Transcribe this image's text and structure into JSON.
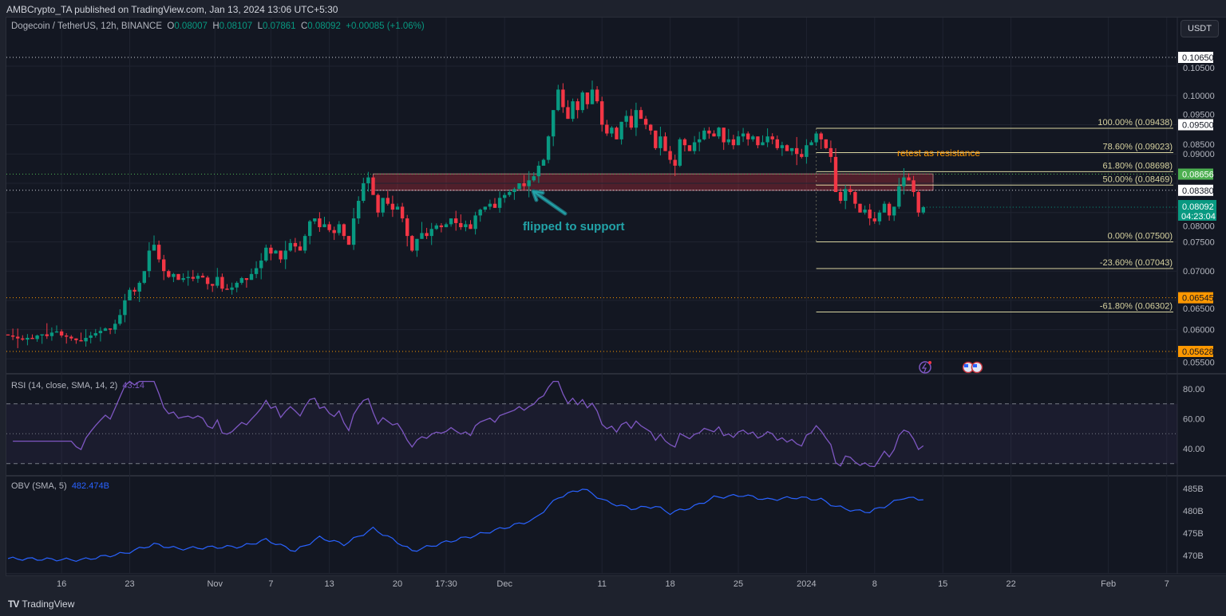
{
  "publisher_line": "AMBCrypto_TA published on TradingView.com, Jan 13, 2024 13:06 UTC+5:30",
  "symbol": {
    "name": "Dogecoin / TetherUS, 12h, BINANCE",
    "o_label": "O",
    "o": "0.08007",
    "h_label": "H",
    "h": "0.08107",
    "l_label": "L",
    "l": "0.07861",
    "c_label": "C",
    "c": "0.08092",
    "change": "+0.00085 (+1.06%)"
  },
  "currency_button": "USDT",
  "footer_brand": "TradingView",
  "colors": {
    "up": "#089981",
    "down": "#f23645",
    "fib": "#d8d3a0",
    "rsi": "#7e57c2",
    "obv": "#2962ff",
    "orange": "#ff9800",
    "green_tag": "#4caf50",
    "zone": "#f23645"
  },
  "chart_data": {
    "type": "candlestick",
    "title": "Dogecoin / TetherUS, 12h, BINANCE",
    "ylim": [
      0.0545,
      0.1095
    ],
    "price_ticks": [
      "0.10500",
      "0.10000",
      "0.09500",
      "0.09000",
      "0.08500",
      "0.08000",
      "0.07500",
      "0.07000",
      "0.06500",
      "0.06000",
      "0.05500"
    ],
    "time_ticks": [
      {
        "label": "16",
        "candle": 11
      },
      {
        "label": "23",
        "candle": 25
      },
      {
        "label": "Nov",
        "candle": 42.5
      },
      {
        "label": "7",
        "candle": 54
      },
      {
        "label": "13",
        "candle": 66
      },
      {
        "label": "20",
        "candle": 80
      },
      {
        "label": "17:30",
        "candle": 90
      },
      {
        "label": "Dec",
        "candle": 102
      },
      {
        "label": "11",
        "candle": 122
      },
      {
        "label": "18",
        "candle": 136
      },
      {
        "label": "25",
        "candle": 150
      },
      {
        "label": "2024",
        "candle": 164
      },
      {
        "label": "8",
        "candle": 178
      },
      {
        "label": "15",
        "candle": 192
      },
      {
        "label": "22",
        "candle": 206
      },
      {
        "label": "Feb",
        "candle": 226
      },
      {
        "label": "7",
        "candle": 238
      }
    ],
    "closes": [
      0.059,
      0.0588,
      0.0585,
      0.0583,
      0.0586,
      0.0584,
      0.059,
      0.0592,
      0.0589,
      0.0595,
      0.0597,
      0.059,
      0.0588,
      0.0585,
      0.0582,
      0.058,
      0.0586,
      0.059,
      0.0594,
      0.0598,
      0.0602,
      0.06,
      0.061,
      0.0625,
      0.065,
      0.0668,
      0.0665,
      0.068,
      0.07,
      0.0735,
      0.0745,
      0.072,
      0.07,
      0.069,
      0.0695,
      0.0685,
      0.0688,
      0.069,
      0.0687,
      0.0692,
      0.0689,
      0.0678,
      0.0675,
      0.069,
      0.067,
      0.0668,
      0.0672,
      0.068,
      0.0688,
      0.0685,
      0.0695,
      0.0705,
      0.0718,
      0.074,
      0.073,
      0.0735,
      0.072,
      0.0735,
      0.0748,
      0.0742,
      0.0735,
      0.076,
      0.0785,
      0.079,
      0.0775,
      0.078,
      0.077,
      0.0765,
      0.078,
      0.076,
      0.0745,
      0.079,
      0.082,
      0.085,
      0.086,
      0.083,
      0.08,
      0.0825,
      0.0815,
      0.0805,
      0.081,
      0.079,
      0.076,
      0.0735,
      0.0755,
      0.0765,
      0.076,
      0.0772,
      0.0778,
      0.0775,
      0.078,
      0.079,
      0.0782,
      0.0775,
      0.078,
      0.0772,
      0.0795,
      0.0805,
      0.081,
      0.0815,
      0.0808,
      0.0825,
      0.083,
      0.0835,
      0.084,
      0.085,
      0.0845,
      0.0855,
      0.0862,
      0.088,
      0.089,
      0.093,
      0.0975,
      0.101,
      0.098,
      0.096,
      0.099,
      0.0975,
      0.1005,
      0.0985,
      0.101,
      0.099,
      0.095,
      0.0935,
      0.0945,
      0.0925,
      0.0955,
      0.0965,
      0.0945,
      0.0975,
      0.096,
      0.095,
      0.094,
      0.091,
      0.093,
      0.0905,
      0.089,
      0.088,
      0.0925,
      0.0915,
      0.0905,
      0.092,
      0.0925,
      0.094,
      0.0935,
      0.093,
      0.0945,
      0.092,
      0.0925,
      0.0915,
      0.093,
      0.0935,
      0.0925,
      0.093,
      0.0915,
      0.092,
      0.093,
      0.0925,
      0.091,
      0.0915,
      0.0905,
      0.091,
      0.09,
      0.0895,
      0.0915,
      0.092,
      0.0935,
      0.0925,
      0.091,
      0.0895,
      0.0835,
      0.082,
      0.084,
      0.0835,
      0.0815,
      0.08,
      0.0805,
      0.079,
      0.0785,
      0.08,
      0.0815,
      0.0795,
      0.081,
      0.0845,
      0.086,
      0.0855,
      0.0835,
      0.08,
      0.08092
    ],
    "horizontal_levels": [
      {
        "price": 0.1065,
        "label": "0.10650",
        "style": "white"
      },
      {
        "price": 0.095,
        "label": "0.09500",
        "style": "white"
      },
      {
        "price": 0.0838,
        "label": "0.08380",
        "style": "white"
      },
      {
        "price": 0.08656,
        "label": "0.08656",
        "style": "green"
      },
      {
        "price": 0.06545,
        "label": "0.06545",
        "style": "orange"
      },
      {
        "price": 0.05628,
        "label": "0.05628",
        "style": "orange"
      }
    ],
    "last_price": {
      "label": "0.08092",
      "countdown": "04:23:04",
      "price": 0.08092
    },
    "fib_levels": [
      {
        "price": 0.09438,
        "label": "100.00% (0.09438)"
      },
      {
        "price": 0.09023,
        "label": "78.60% (0.09023)"
      },
      {
        "price": 0.08698,
        "label": "61.80% (0.08698)"
      },
      {
        "price": 0.08469,
        "label": "50.00% (0.08469)"
      },
      {
        "price": 0.075,
        "label": "0.00% (0.07500)"
      },
      {
        "price": 0.07043,
        "label": "-23.60% (0.07043)"
      },
      {
        "price": 0.06302,
        "label": "-61.80% (0.06302)"
      }
    ],
    "fib_start_candle": 166,
    "zone": {
      "top": 0.0866,
      "bottom": 0.0838,
      "start_candle": 75,
      "end_candle": 190
    },
    "annotations": [
      {
        "text": "flipped to support",
        "color": "#22a3a8"
      },
      {
        "text": "retest as resistance",
        "color": "#ff9800"
      }
    ],
    "rsi": {
      "label": "RSI (14, close, SMA, 14, 2)",
      "value": "43.14",
      "period": 14,
      "ylim": [
        25,
        90
      ],
      "ticks": [
        "80.00",
        "60.00",
        "40.00"
      ],
      "bands": [
        70,
        50,
        30
      ]
    },
    "obv": {
      "label": "OBV (SMA, 5)",
      "value": "482.474B",
      "ylim": [
        467,
        487.5
      ],
      "ticks": [
        "485B",
        "480B",
        "475B",
        "470B"
      ],
      "keypoints_candle_value_B": [
        [
          0,
          469.3
        ],
        [
          15,
          469.0
        ],
        [
          24,
          470.5
        ],
        [
          30,
          472.5
        ],
        [
          35,
          471.5
        ],
        [
          41,
          471.8
        ],
        [
          48,
          472.0
        ],
        [
          53,
          473.5
        ],
        [
          59,
          471.0
        ],
        [
          64,
          474.0
        ],
        [
          69,
          472.5
        ],
        [
          75,
          476.0
        ],
        [
          80,
          473.0
        ],
        [
          83,
          471.0
        ],
        [
          90,
          473.0
        ],
        [
          96,
          474.5
        ],
        [
          103,
          476.5
        ],
        [
          108,
          478.0
        ],
        [
          113,
          483.0
        ],
        [
          118,
          485.0
        ],
        [
          123,
          482.0
        ],
        [
          128,
          480.5
        ],
        [
          133,
          481.0
        ],
        [
          136,
          479.5
        ],
        [
          141,
          481.0
        ],
        [
          145,
          483.0
        ],
        [
          151,
          483.5
        ],
        [
          156,
          482.5
        ],
        [
          162,
          483.0
        ],
        [
          167,
          482.5
        ],
        [
          170,
          481.0
        ],
        [
          174,
          480.0
        ],
        [
          177,
          479.8
        ],
        [
          180,
          481.0
        ],
        [
          184,
          483.0
        ],
        [
          188,
          482.474
        ]
      ]
    }
  }
}
